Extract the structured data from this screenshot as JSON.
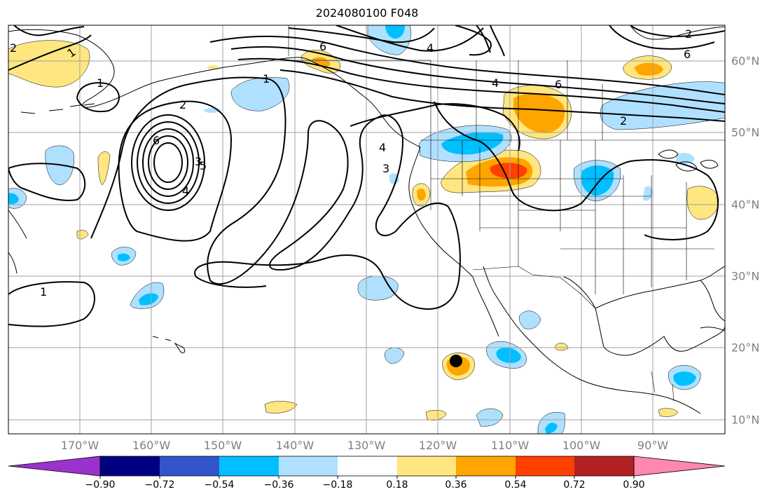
{
  "figure": {
    "title": "2024080100 F048"
  },
  "map": {
    "projection": "plate-carree",
    "lon_range": [
      -180,
      -80
    ],
    "lat_range": [
      8,
      66
    ],
    "gridlines": true,
    "lon_labels": [
      "170°W",
      "160°W",
      "150°W",
      "140°W",
      "130°W",
      "120°W",
      "110°W",
      "100°W",
      "90°W"
    ],
    "lat_labels": [
      "10°N",
      "20°N",
      "30°N",
      "40°N",
      "50°N",
      "60°N"
    ],
    "marker": {
      "label": "storm-center",
      "lon": -117.6,
      "lat": 18.0
    },
    "contour_labels": [
      "2",
      "1",
      "1",
      "2",
      "6",
      "5",
      "4",
      "3",
      "1",
      "3",
      "4",
      "6",
      "4",
      "6",
      "2",
      "6",
      "4",
      "2",
      "1"
    ],
    "colors": {
      "land_line": "#000000",
      "contour_line": "#000000",
      "grid": "#a0a0a0",
      "axis_label": "#808080"
    }
  },
  "colorbar": {
    "ticks": [
      "−0.90",
      "−0.72",
      "−0.54",
      "−0.36",
      "−0.18",
      "0.18",
      "0.36",
      "0.54",
      "0.72",
      "0.90"
    ],
    "colors": [
      "#9933cc",
      "#000080",
      "#3355cc",
      "#00bfff",
      "#b0e0ff",
      "#ffffff",
      "#ffe680",
      "#ffa500",
      "#ff4000",
      "#b22222",
      "#ff88b0"
    ]
  }
}
